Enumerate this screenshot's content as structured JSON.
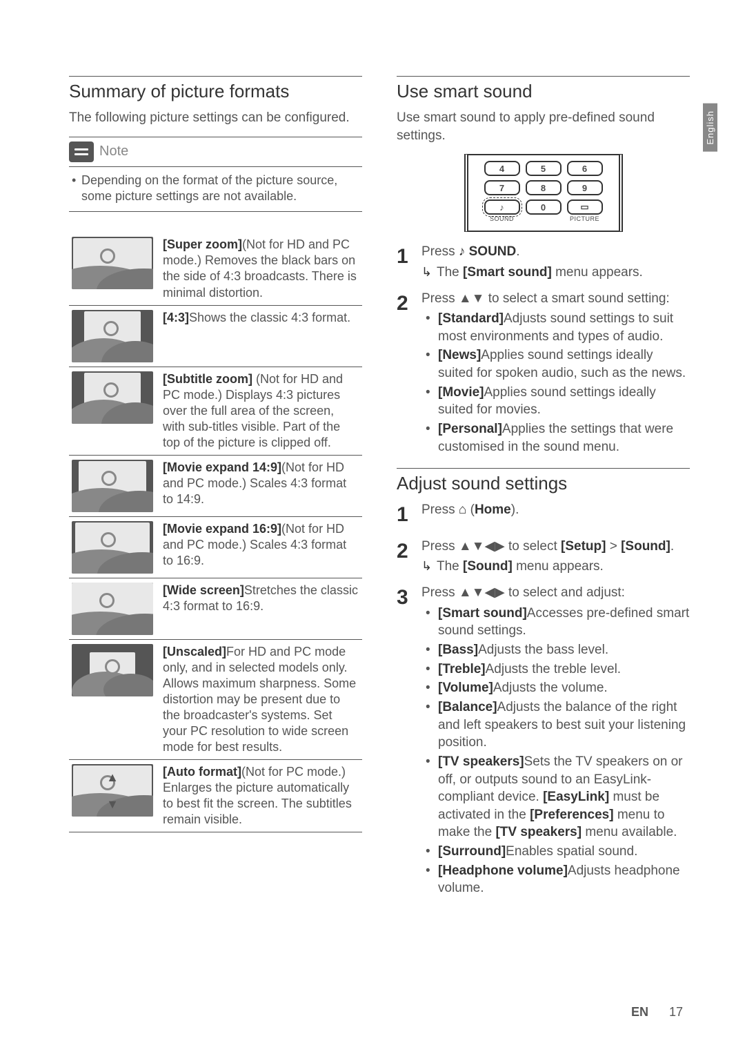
{
  "side_tab": "English",
  "footer": {
    "label": "EN",
    "page": "17"
  },
  "left": {
    "heading": "Summary of picture formats",
    "intro": "The following picture settings can be configured.",
    "note_label": "Note",
    "note_body": "Depending on the format of the picture source, some picture settings are not available.",
    "formats": [
      {
        "title": "[Super zoom]",
        "body": "(Not for HD and PC mode.) Removes the black bars on the side of 4:3 broadcasts. There is minimal distortion.",
        "thumb": "wide-bars"
      },
      {
        "title": "[4:3]",
        "body": "Shows the classic 4:3 format.",
        "thumb": "4-3"
      },
      {
        "title": "[Subtitle zoom]",
        "body": " (Not for HD and PC mode.) Displays 4:3 pictures over the full area of the screen, with sub-titles visible. Part of the top of the picture is clipped off.",
        "thumb": "4-3"
      },
      {
        "title": "[Movie expand 14:9]",
        "body": "(Not for HD and PC mode.) Scales 4:3 format to 14:9.",
        "thumb": "14-9"
      },
      {
        "title": "[Movie expand 16:9]",
        "body": "(Not for HD and PC mode.) Scales 4:3 format to 16:9.",
        "thumb": "16-9"
      },
      {
        "title": "[Wide screen]",
        "body": "Stretches the classic 4:3 format to 16:9.",
        "thumb": "full"
      },
      {
        "title": "[Unscaled]",
        "body": "For HD and PC mode only, and in selected models only. Allows maximum sharpness. Some distortion may be present due to the broadcaster's systems. Set your PC resolution to wide screen mode for best results.",
        "thumb": "small"
      },
      {
        "title": "[Auto format]",
        "body": "(Not for PC mode.) Enlarges the picture automatically to best fit the screen. The subtitles remain visible.",
        "thumb": "auto"
      }
    ]
  },
  "right": {
    "heading1": "Use smart sound",
    "intro1": "Use smart sound to apply pre-defined sound settings.",
    "remote": {
      "r1": [
        "4",
        "5",
        "6"
      ],
      "r2": [
        "7",
        "8",
        "9"
      ],
      "r3": [
        "♪",
        "0",
        "▭"
      ],
      "lbl_left": "SOUND",
      "lbl_right": "PICTURE"
    },
    "step1_a": "Press ",
    "step1_b": "♪ SOUND",
    "step1_c": ".",
    "step1_sub_a": "The ",
    "step1_sub_b": "[Smart sound]",
    "step1_sub_c": " menu appears.",
    "step2_a": "Press ▲▼ to select a smart sound setting:",
    "step2_bullets": [
      {
        "t": "[Standard]",
        "b": "Adjusts sound settings to suit most environments and types of audio."
      },
      {
        "t": "[News]",
        "b": "Applies sound settings ideally suited for spoken audio, such as the news."
      },
      {
        "t": "[Movie]",
        "b": "Applies sound settings ideally suited for movies."
      },
      {
        "t": "[Personal]",
        "b": "Applies the settings that were customised in the sound menu."
      }
    ],
    "heading2": "Adjust sound settings",
    "adj1_a": "Press ",
    "adj1_b": "⌂",
    "adj1_c": " (",
    "adj1_d": "Home",
    "adj1_e": ").",
    "adj2_a": "Press ▲▼◀▶ to select ",
    "adj2_b": "[Setup]",
    "adj2_c": " > ",
    "adj2_d": "[Sound]",
    "adj2_e": ".",
    "adj2_sub_a": "The ",
    "adj2_sub_b": "[Sound]",
    "adj2_sub_c": " menu appears.",
    "adj3_a": "Press ▲▼◀▶ to select and adjust:",
    "adj3_bullets": [
      {
        "t": "[Smart sound]",
        "b": "Accesses pre-defined smart sound settings."
      },
      {
        "t": "[Bass]",
        "b": "Adjusts the bass level."
      },
      {
        "t": "[Treble]",
        "b": "Adjusts the treble level."
      },
      {
        "t": "[Volume]",
        "b": "Adjusts the volume."
      },
      {
        "t": "[Balance]",
        "b": "Adjusts the balance of the right and left speakers to best suit your listening position."
      }
    ],
    "adj3_tv_t": "[TV speakers]",
    "adj3_tv_a": "Sets the TV speakers on or off, or outputs sound to an EasyLink-compliant device. ",
    "adj3_tv_b": "[EasyLink]",
    "adj3_tv_c": " must be activated in the ",
    "adj3_tv_d": "[Preferences]",
    "adj3_tv_e": " menu to make the ",
    "adj3_tv_f": "[TV speakers]",
    "adj3_tv_g": " menu available.",
    "adj3_extra": [
      {
        "t": "[Surround]",
        "b": "Enables spatial sound."
      },
      {
        "t": "[Headphone volume]",
        "b": "Adjusts headphone volume."
      }
    ]
  }
}
